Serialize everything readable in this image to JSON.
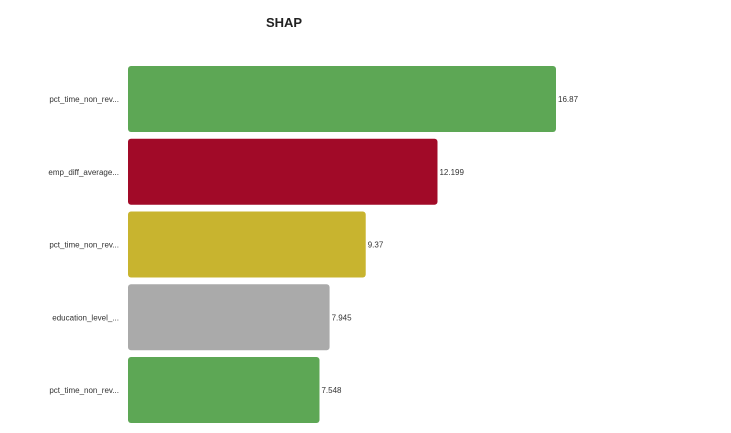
{
  "chart_data": {
    "type": "bar",
    "orientation": "horizontal",
    "title": "SHAP",
    "xlabel": "",
    "ylabel": "",
    "grid": false,
    "legend": "none",
    "xlim": [
      0,
      16.87
    ],
    "categories": [
      "pct_time_non_rev...",
      "emp_diff_average...",
      "pct_time_non_rev...",
      "education_level_...",
      "pct_time_non_rev..."
    ],
    "values": [
      16.87,
      12.199,
      9.37,
      7.945,
      7.548
    ],
    "value_labels": [
      "16.87",
      "12.199",
      "9.37",
      "7.945",
      "7.548"
    ],
    "colors": [
      "#5da755",
      "#a10a28",
      "#c8b42f",
      "#aaaaaa",
      "#5da755"
    ]
  }
}
